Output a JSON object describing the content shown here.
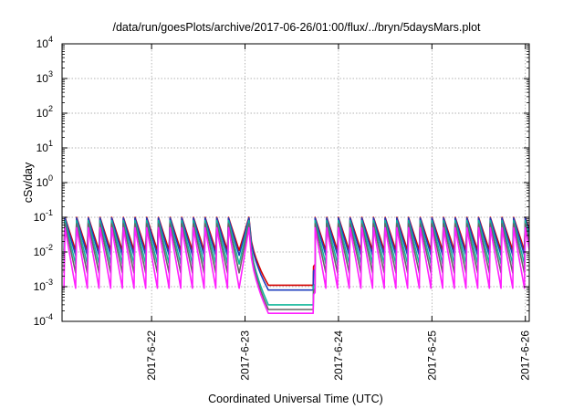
{
  "chart_data": {
    "type": "line",
    "title": "/data/run/goesPlots/archive/2017-06-26/01:00/flux/../bryn/5daysMars.plot",
    "xlabel": "Coordinated Universal Time (UTC)",
    "ylabel": "cSv/day",
    "y_scale": "log",
    "ylim": [
      0.0001,
      10000
    ],
    "y_ticks": [
      {
        "base": "10",
        "exp": "-4"
      },
      {
        "base": "10",
        "exp": "-3"
      },
      {
        "base": "10",
        "exp": "-2"
      },
      {
        "base": "10",
        "exp": "-1"
      },
      {
        "base": "10",
        "exp": "0"
      },
      {
        "base": "10",
        "exp": "1"
      },
      {
        "base": "10",
        "exp": "2"
      },
      {
        "base": "10",
        "exp": "3"
      },
      {
        "base": "10",
        "exp": "4"
      }
    ],
    "xlim": [
      "2017-06-21 01:00",
      "2017-06-26 01:00"
    ],
    "x_ticks": [
      "2017-6-22",
      "2017-6-23",
      "2017-6-24",
      "2017-6-25",
      "2017-6-26"
    ],
    "grid": true,
    "legend": "none",
    "pattern": {
      "description": "sawtooth: sharp rise then decay, repeating every 3 hours",
      "period_hours": 3,
      "quiet_interval": [
        "2017-06-23 01:00",
        "2017-06-23 18:00"
      ],
      "quiet_plateau_hours_after_start": 5
    },
    "series": [
      {
        "color": "#d40000",
        "peak": 0.1,
        "trough": 0.011,
        "quiet_floor": 0.0011
      },
      {
        "color": "#1f3fbf",
        "peak": 0.095,
        "trough": 0.008,
        "quiet_floor": 0.0008
      },
      {
        "color": "#13b89b",
        "peak": 0.08,
        "trough": 0.0045,
        "quiet_floor": 0.0003
      },
      {
        "color": "#666666",
        "peak": 0.065,
        "trough": 0.0025,
        "quiet_floor": 0.00022
      },
      {
        "color": "#ff1fff",
        "peak": 0.05,
        "trough": 0.0009,
        "quiet_floor": 0.00017
      }
    ]
  }
}
